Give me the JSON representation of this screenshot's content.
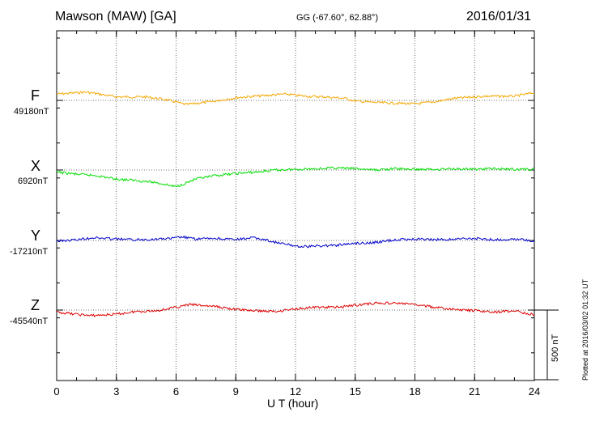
{
  "header": {
    "station": "Mawson (MAW)  [GA]",
    "coords": "GG (-67.60°,  62.88°)",
    "date": "2016/01/31"
  },
  "footer": {
    "plotted": "Plotted at 2016/03/02 01:32 UT"
  },
  "chart_data": {
    "type": "line",
    "title": "Mawson (MAW)  [GA]",
    "xlabel": "U T (hour)",
    "ylabel": "",
    "xlim": [
      0,
      24
    ],
    "xticks": [
      0,
      3,
      6,
      9,
      12,
      15,
      18,
      21,
      24
    ],
    "grid": true,
    "scale_bar": {
      "label": "500 nT",
      "nT": 500
    },
    "series": [
      {
        "name": "F",
        "baseline_label": "49180nT",
        "baseline": 49180,
        "color": "#f4a800",
        "x": [
          0,
          1.5,
          3,
          4.5,
          5.5,
          6.5,
          8,
          9,
          10,
          11.5,
          12.5,
          13.5,
          14.5,
          15,
          16,
          17,
          18,
          19,
          20,
          21.5,
          23,
          24
        ],
        "y": [
          49225,
          49240,
          49205,
          49205,
          49185,
          49150,
          49175,
          49200,
          49210,
          49225,
          49210,
          49205,
          49195,
          49175,
          49165,
          49160,
          49155,
          49170,
          49195,
          49210,
          49210,
          49235
        ]
      },
      {
        "name": "X",
        "baseline_label": "6920nT",
        "baseline": 6920,
        "color": "#00dd00",
        "x": [
          0,
          1,
          2,
          3,
          4,
          5,
          6,
          7,
          8,
          9,
          10,
          11,
          12,
          13,
          14,
          15,
          16,
          17,
          18,
          19,
          20,
          21,
          22,
          23,
          24
        ],
        "y": [
          6905,
          6890,
          6880,
          6855,
          6845,
          6830,
          6800,
          6855,
          6880,
          6895,
          6905,
          6920,
          6925,
          6930,
          6935,
          6930,
          6920,
          6930,
          6925,
          6925,
          6930,
          6925,
          6930,
          6925,
          6925
        ]
      },
      {
        "name": "Y",
        "baseline_label": "-17210nT",
        "baseline": -17210,
        "color": "#0000cc",
        "x": [
          0,
          1,
          1.8,
          3,
          4,
          5,
          5.8,
          6.3,
          7,
          8,
          9,
          9.8,
          10.5,
          11,
          11.8,
          12.3,
          13,
          14,
          15,
          16,
          17,
          18,
          19,
          20,
          21,
          22,
          23,
          24
        ],
        "y": [
          -17215,
          -17205,
          -17190,
          -17200,
          -17205,
          -17200,
          -17195,
          -17185,
          -17200,
          -17195,
          -17205,
          -17190,
          -17205,
          -17225,
          -17245,
          -17255,
          -17250,
          -17245,
          -17230,
          -17225,
          -17205,
          -17200,
          -17205,
          -17200,
          -17195,
          -17205,
          -17200,
          -17215
        ]
      },
      {
        "name": "Z",
        "baseline_label": "-45540nT",
        "baseline": -45540,
        "color": "#e00000",
        "x": [
          0,
          1,
          1.7,
          3,
          4,
          5,
          6,
          6.7,
          8,
          9,
          10,
          11,
          12,
          13,
          14,
          15,
          16,
          17,
          17.6,
          18.5,
          19.5,
          21,
          22,
          23,
          24
        ],
        "y": [
          -45555,
          -45570,
          -45580,
          -45570,
          -45550,
          -45545,
          -45520,
          -45500,
          -45515,
          -45535,
          -45545,
          -45550,
          -45530,
          -45520,
          -45520,
          -45505,
          -45490,
          -45490,
          -45495,
          -45510,
          -45530,
          -45545,
          -45555,
          -45545,
          -45575
        ]
      }
    ]
  }
}
